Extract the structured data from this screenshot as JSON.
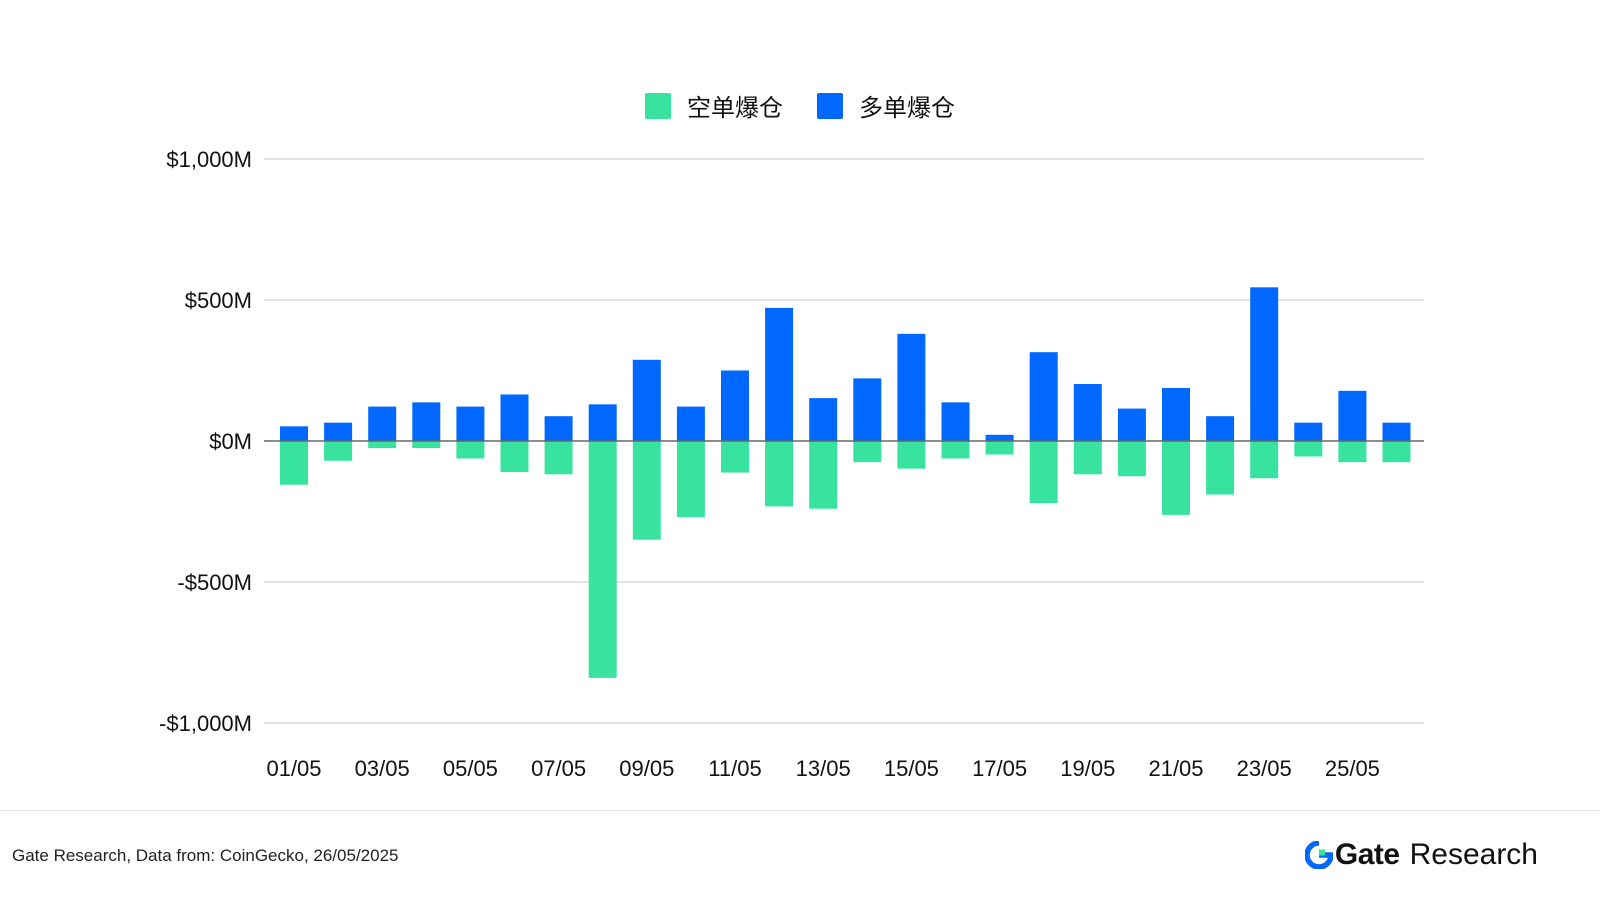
{
  "chart_data": {
    "type": "bar",
    "stacked": true,
    "categories": [
      "01/05",
      "02/05",
      "03/05",
      "04/05",
      "05/05",
      "06/05",
      "07/05",
      "08/05",
      "09/05",
      "10/05",
      "11/05",
      "12/05",
      "13/05",
      "14/05",
      "15/05",
      "16/05",
      "17/05",
      "18/05",
      "19/05",
      "20/05",
      "21/05",
      "22/05",
      "23/05",
      "24/05",
      "25/05",
      "26/05"
    ],
    "tick_labels": [
      "01/05",
      "03/05",
      "05/05",
      "07/05",
      "09/05",
      "11/05",
      "13/05",
      "15/05",
      "17/05",
      "19/05",
      "21/05",
      "23/05",
      "25/05"
    ],
    "series": [
      {
        "name": "空单爆仓",
        "color": "#38E39F",
        "values": [
          -155,
          -70,
          -25,
          -25,
          -62,
          -110,
          -118,
          -840,
          -350,
          -270,
          -112,
          -232,
          -240,
          -75,
          -98,
          -62,
          -48,
          -220,
          -118,
          -125,
          -262,
          -190,
          -132,
          -55,
          -75,
          -75
        ]
      },
      {
        "name": "多单爆仓",
        "color": "#0068FF",
        "values": [
          52,
          65,
          122,
          137,
          122,
          165,
          88,
          130,
          288,
          122,
          250,
          472,
          152,
          222,
          380,
          137,
          22,
          315,
          202,
          115,
          188,
          88,
          545,
          65,
          178,
          65
        ]
      }
    ],
    "yticks": [
      -1000,
      -500,
      0,
      500,
      1000
    ],
    "ytick_labels": [
      "-$1,000M",
      "-$500M",
      "$0M",
      "$500M",
      "$1,000M"
    ],
    "ylim": [
      -1000,
      1000
    ],
    "grid": true,
    "legend_position": "top-center"
  },
  "footer": {
    "source": "Gate Research, Data from: CoinGecko, 26/05/2025",
    "brand_name": "Gate",
    "brand_suffix": "Research"
  }
}
